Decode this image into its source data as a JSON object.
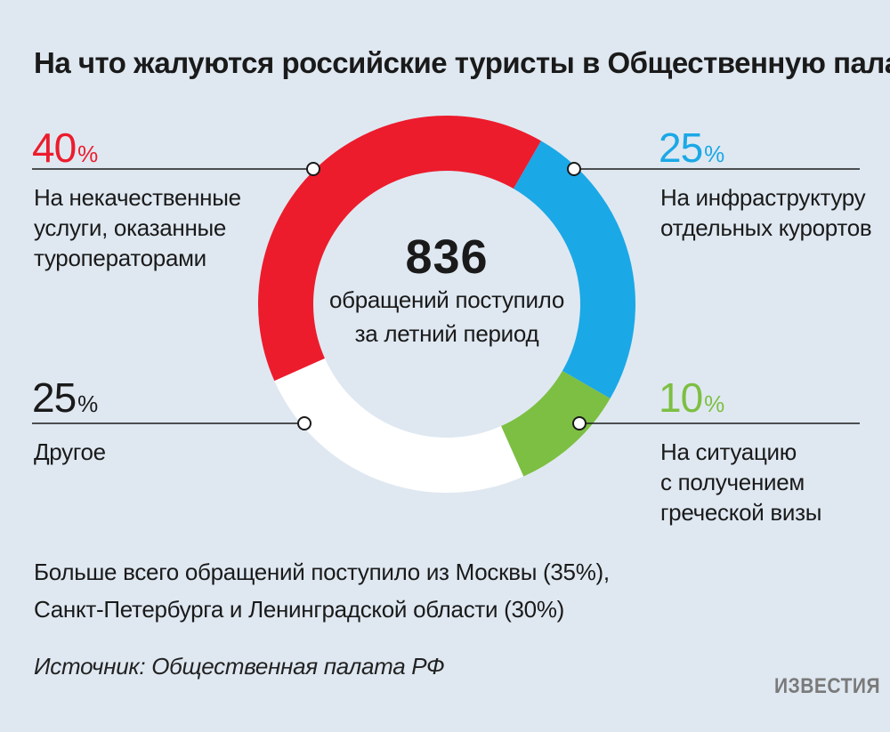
{
  "title": "На что жалуются российские туристы в Общественную палату",
  "center": {
    "total": "836",
    "text_lines": [
      "обращений поступило",
      "за летний период"
    ]
  },
  "segments": [
    {
      "key": "services",
      "value": 40,
      "sign": "%",
      "color": "#ec1c2d",
      "label_lines": [
        "На некачественные",
        "услуги, оказанные",
        "туроператорами"
      ]
    },
    {
      "key": "infrastructure",
      "value": 25,
      "sign": "%",
      "color": "#1ba8e6",
      "label_lines": [
        "На инфраструктуру",
        "отдельных курортов"
      ]
    },
    {
      "key": "visa",
      "value": 10,
      "sign": "%",
      "color": "#7dbf42",
      "label_lines": [
        "На ситуацию",
        "с получением",
        "греческой визы"
      ]
    },
    {
      "key": "other",
      "value": 25,
      "sign": "%",
      "color": "#ffffff",
      "label_lines": [
        "Другое"
      ]
    }
  ],
  "note_lines": [
    "Больше всего обращений поступило из Москвы (35%),",
    "Санкт-Петербурга и Ленинградской области (30%)"
  ],
  "source": "Источник: Общественная палата РФ",
  "logo": "ИЗВЕСТИЯ",
  "chart_data": {
    "type": "pie",
    "title": "На что жалуются российские туристы в Общественную палату",
    "categories": [
      "На некачественные услуги, оказанные туроператорами",
      "На инфраструктуру отдельных курортов",
      "На ситуацию с получением греческой визы",
      "Другое"
    ],
    "values": [
      40,
      25,
      10,
      25
    ],
    "colors": [
      "#ec1c2d",
      "#1ba8e6",
      "#7dbf42",
      "#ffffff"
    ]
  }
}
